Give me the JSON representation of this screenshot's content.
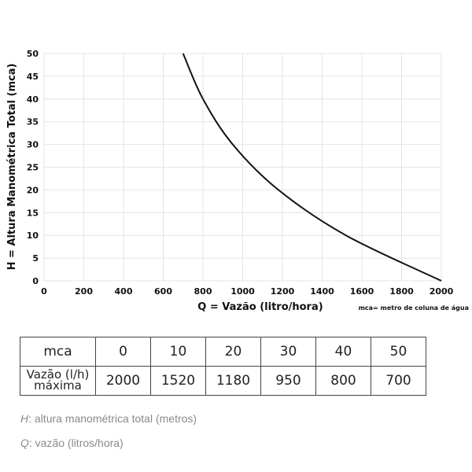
{
  "chart_data": {
    "type": "line",
    "xlabel": "Q = Vazão (litro/hora)",
    "ylabel": "H = Altura Manométrica Total (mca)",
    "note": "mca= metro de coluna de água",
    "xlim": [
      0,
      2000
    ],
    "ylim": [
      0,
      50
    ],
    "xticks": [
      "0",
      "200",
      "400",
      "600",
      "800",
      "1000",
      "1200",
      "1400",
      "1600",
      "1800",
      "2000"
    ],
    "yticks": [
      "0",
      "5",
      "10",
      "15",
      "20",
      "25",
      "30",
      "35",
      "40",
      "45",
      "50"
    ],
    "grid": true,
    "series": [
      {
        "points": [
          [
            700,
            50
          ],
          [
            800,
            40
          ],
          [
            950,
            30
          ],
          [
            1180,
            20
          ],
          [
            1520,
            10
          ],
          [
            2000,
            0
          ]
        ],
        "color": "#111111"
      }
    ]
  },
  "table": {
    "header": [
      "mca",
      "0",
      "10",
      "20",
      "30",
      "40",
      "50"
    ],
    "row_label_1": "Vazão (l/h)",
    "row_label_2": "máxima",
    "row": [
      "2000",
      "1520",
      "1180",
      "950",
      "800",
      "700"
    ]
  },
  "footnotes": [
    {
      "sym": "H",
      "text": ": altura manométrica total (metros)"
    },
    {
      "sym": "Q",
      "text": ": vazão (litros/hora)"
    }
  ]
}
